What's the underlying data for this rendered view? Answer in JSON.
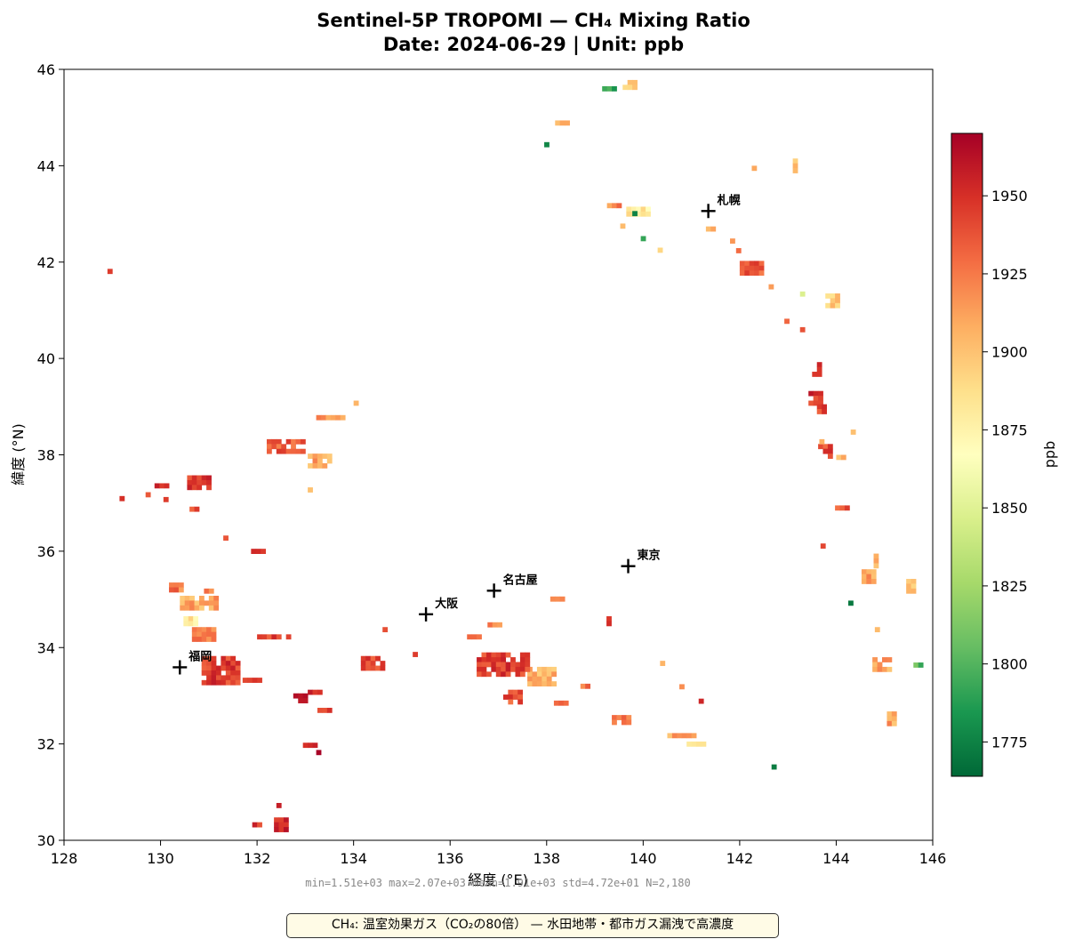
{
  "title": {
    "line1": "Sentinel-5P TROPOMI — CH₄ Mixing Ratio",
    "line2": "Date: 2024-06-29  |  Unit: ppb"
  },
  "chart_data": {
    "type": "heatmap",
    "xlabel": "経度 (°E)",
    "ylabel": "緯度 (°N)",
    "xlim": [
      128,
      146
    ],
    "ylim": [
      30,
      46
    ],
    "xticks": [
      128,
      130,
      132,
      134,
      136,
      138,
      140,
      142,
      144,
      146
    ],
    "yticks": [
      30,
      32,
      34,
      36,
      38,
      40,
      42,
      44,
      46
    ],
    "colorbar": {
      "label": "ppb",
      "vmin": 1764,
      "vmax": 1970,
      "ticks": [
        1775,
        1800,
        1825,
        1850,
        1875,
        1900,
        1925,
        1950
      ],
      "colormap": [
        "#006837",
        "#1a9850",
        "#66bd63",
        "#a6d96a",
        "#d9ef8b",
        "#ffffbf",
        "#fee08b",
        "#fdae61",
        "#f46d43",
        "#d73027",
        "#a50026"
      ]
    },
    "cities": [
      {
        "name": "札幌",
        "lon": 141.35,
        "lat": 43.06
      },
      {
        "name": "東京",
        "lon": 139.69,
        "lat": 35.69
      },
      {
        "name": "名古屋",
        "lon": 136.91,
        "lat": 35.18
      },
      {
        "name": "大阪",
        "lon": 135.5,
        "lat": 34.69
      },
      {
        "name": "福岡",
        "lon": 130.4,
        "lat": 33.59
      }
    ],
    "clusters": [
      {
        "lon": 139.75,
        "lat": 45.68,
        "w": 0.35,
        "h": 0.2,
        "v": 1895
      },
      {
        "lon": 139.3,
        "lat": 45.6,
        "w": 0.3,
        "h": 0.1,
        "v": 1790
      },
      {
        "lon": 138.3,
        "lat": 44.9,
        "w": 0.25,
        "h": 0.08,
        "v": 1905
      },
      {
        "lon": 138.0,
        "lat": 44.45,
        "w": 0.1,
        "h": 0.08,
        "v": 1790
      },
      {
        "lon": 142.3,
        "lat": 43.95,
        "w": 0.1,
        "h": 0.1,
        "v": 1905
      },
      {
        "lon": 143.15,
        "lat": 44.0,
        "w": 0.1,
        "h": 0.3,
        "v": 1895
      },
      {
        "lon": 139.4,
        "lat": 43.15,
        "w": 0.3,
        "h": 0.15,
        "v": 1920
      },
      {
        "lon": 139.9,
        "lat": 43.05,
        "w": 0.5,
        "h": 0.2,
        "v": 1880
      },
      {
        "lon": 139.85,
        "lat": 43.0,
        "w": 0.15,
        "h": 0.12,
        "v": 1775
      },
      {
        "lon": 139.6,
        "lat": 42.75,
        "w": 0.15,
        "h": 0.1,
        "v": 1905
      },
      {
        "lon": 140.0,
        "lat": 42.5,
        "w": 0.1,
        "h": 0.08,
        "v": 1800
      },
      {
        "lon": 140.35,
        "lat": 42.25,
        "w": 0.1,
        "h": 0.1,
        "v": 1880
      },
      {
        "lon": 141.4,
        "lat": 42.7,
        "w": 0.2,
        "h": 0.08,
        "v": 1915
      },
      {
        "lon": 141.85,
        "lat": 42.45,
        "w": 0.1,
        "h": 0.08,
        "v": 1920
      },
      {
        "lon": 142.0,
        "lat": 42.25,
        "w": 0.15,
        "h": 0.08,
        "v": 1925
      },
      {
        "lon": 142.25,
        "lat": 41.9,
        "w": 0.5,
        "h": 0.25,
        "v": 1935
      },
      {
        "lon": 142.65,
        "lat": 41.5,
        "w": 0.1,
        "h": 0.08,
        "v": 1905
      },
      {
        "lon": 143.3,
        "lat": 41.35,
        "w": 0.1,
        "h": 0.08,
        "v": 1860
      },
      {
        "lon": 143.95,
        "lat": 41.2,
        "w": 0.35,
        "h": 0.3,
        "v": 1895
      },
      {
        "lon": 143.0,
        "lat": 40.75,
        "w": 0.15,
        "h": 0.15,
        "v": 1945
      },
      {
        "lon": 143.3,
        "lat": 40.6,
        "w": 0.1,
        "h": 0.1,
        "v": 1945
      },
      {
        "lon": 143.6,
        "lat": 39.75,
        "w": 0.2,
        "h": 0.35,
        "v": 1955
      },
      {
        "lon": 143.55,
        "lat": 39.2,
        "w": 0.25,
        "h": 0.25,
        "v": 1950
      },
      {
        "lon": 143.7,
        "lat": 38.95,
        "w": 0.2,
        "h": 0.2,
        "v": 1945
      },
      {
        "lon": 143.75,
        "lat": 38.05,
        "w": 0.25,
        "h": 0.35,
        "v": 1940
      },
      {
        "lon": 144.1,
        "lat": 37.95,
        "w": 0.2,
        "h": 0.1,
        "v": 1905
      },
      {
        "lon": 144.35,
        "lat": 38.45,
        "w": 0.1,
        "h": 0.15,
        "v": 1890
      },
      {
        "lon": 143.7,
        "lat": 38.3,
        "w": 0.1,
        "h": 0.05,
        "v": 1910
      },
      {
        "lon": 144.1,
        "lat": 36.9,
        "w": 0.25,
        "h": 0.1,
        "v": 1935
      },
      {
        "lon": 143.75,
        "lat": 36.1,
        "w": 0.15,
        "h": 0.12,
        "v": 1940
      },
      {
        "lon": 144.65,
        "lat": 35.5,
        "w": 0.25,
        "h": 0.25,
        "v": 1910
      },
      {
        "lon": 144.85,
        "lat": 35.8,
        "w": 0.15,
        "h": 0.3,
        "v": 1900
      },
      {
        "lon": 144.3,
        "lat": 34.95,
        "w": 0.1,
        "h": 0.05,
        "v": 1780
      },
      {
        "lon": 145.55,
        "lat": 35.25,
        "w": 0.2,
        "h": 0.35,
        "v": 1905
      },
      {
        "lon": 145.0,
        "lat": 33.65,
        "w": 0.5,
        "h": 0.3,
        "v": 1910
      },
      {
        "lon": 144.85,
        "lat": 34.4,
        "w": 0.1,
        "h": 0.05,
        "v": 1900
      },
      {
        "lon": 145.7,
        "lat": 33.65,
        "w": 0.2,
        "h": 0.08,
        "v": 1800
      },
      {
        "lon": 145.15,
        "lat": 32.5,
        "w": 0.2,
        "h": 0.35,
        "v": 1910
      },
      {
        "lon": 142.7,
        "lat": 31.55,
        "w": 0.08,
        "h": 0.05,
        "v": 1780
      },
      {
        "lon": 141.2,
        "lat": 32.9,
        "w": 0.1,
        "h": 0.08,
        "v": 1945
      },
      {
        "lon": 140.8,
        "lat": 33.2,
        "w": 0.1,
        "h": 0.08,
        "v": 1905
      },
      {
        "lon": 140.4,
        "lat": 33.65,
        "w": 0.1,
        "h": 0.15,
        "v": 1915
      },
      {
        "lon": 139.6,
        "lat": 32.5,
        "w": 0.5,
        "h": 0.2,
        "v": 1930
      },
      {
        "lon": 140.8,
        "lat": 32.15,
        "w": 0.6,
        "h": 0.15,
        "v": 1910
      },
      {
        "lon": 141.1,
        "lat": 32.0,
        "w": 0.4,
        "h": 0.1,
        "v": 1885
      },
      {
        "lon": 139.3,
        "lat": 34.55,
        "w": 0.12,
        "h": 0.2,
        "v": 1945
      },
      {
        "lon": 138.2,
        "lat": 35.0,
        "w": 0.25,
        "h": 0.12,
        "v": 1915
      },
      {
        "lon": 137.9,
        "lat": 33.4,
        "w": 0.6,
        "h": 0.4,
        "v": 1905
      },
      {
        "lon": 137.1,
        "lat": 33.65,
        "w": 1.1,
        "h": 0.5,
        "v": 1945
      },
      {
        "lon": 136.5,
        "lat": 34.2,
        "w": 0.3,
        "h": 0.15,
        "v": 1935
      },
      {
        "lon": 136.9,
        "lat": 34.45,
        "w": 0.25,
        "h": 0.15,
        "v": 1925
      },
      {
        "lon": 137.3,
        "lat": 33.0,
        "w": 0.4,
        "h": 0.25,
        "v": 1940
      },
      {
        "lon": 138.3,
        "lat": 32.85,
        "w": 0.3,
        "h": 0.1,
        "v": 1935
      },
      {
        "lon": 138.8,
        "lat": 33.2,
        "w": 0.2,
        "h": 0.1,
        "v": 1925
      },
      {
        "lon": 134.4,
        "lat": 33.7,
        "w": 0.5,
        "h": 0.25,
        "v": 1940
      },
      {
        "lon": 135.3,
        "lat": 33.85,
        "w": 0.15,
        "h": 0.12,
        "v": 1935
      },
      {
        "lon": 134.65,
        "lat": 34.4,
        "w": 0.1,
        "h": 0.05,
        "v": 1930
      },
      {
        "lon": 130.9,
        "lat": 34.25,
        "w": 0.5,
        "h": 0.35,
        "v": 1925
      },
      {
        "lon": 131.25,
        "lat": 33.55,
        "w": 0.8,
        "h": 0.55,
        "v": 1945
      },
      {
        "lon": 131.9,
        "lat": 33.3,
        "w": 0.4,
        "h": 0.15,
        "v": 1945
      },
      {
        "lon": 130.35,
        "lat": 35.25,
        "w": 0.35,
        "h": 0.2,
        "v": 1925
      },
      {
        "lon": 130.8,
        "lat": 34.95,
        "w": 0.8,
        "h": 0.25,
        "v": 1910
      },
      {
        "lon": 130.6,
        "lat": 34.55,
        "w": 0.25,
        "h": 0.2,
        "v": 1880
      },
      {
        "lon": 131.0,
        "lat": 35.15,
        "w": 0.2,
        "h": 0.15,
        "v": 1920
      },
      {
        "lon": 132.35,
        "lat": 34.2,
        "w": 0.7,
        "h": 0.15,
        "v": 1945
      },
      {
        "lon": 132.9,
        "lat": 32.95,
        "w": 0.3,
        "h": 0.2,
        "v": 1955
      },
      {
        "lon": 133.2,
        "lat": 33.05,
        "w": 0.3,
        "h": 0.15,
        "v": 1960
      },
      {
        "lon": 133.4,
        "lat": 32.7,
        "w": 0.3,
        "h": 0.1,
        "v": 1950
      },
      {
        "lon": 133.1,
        "lat": 31.95,
        "w": 0.3,
        "h": 0.15,
        "v": 1960
      },
      {
        "lon": 133.3,
        "lat": 31.8,
        "w": 0.15,
        "h": 0.15,
        "v": 1965
      },
      {
        "lon": 132.5,
        "lat": 30.35,
        "w": 0.3,
        "h": 0.25,
        "v": 1950
      },
      {
        "lon": 132.45,
        "lat": 30.75,
        "w": 0.1,
        "h": 0.05,
        "v": 1950
      },
      {
        "lon": 132.0,
        "lat": 30.35,
        "w": 0.2,
        "h": 0.05,
        "v": 1945
      },
      {
        "lon": 132.05,
        "lat": 36.0,
        "w": 0.35,
        "h": 0.1,
        "v": 1940
      },
      {
        "lon": 132.6,
        "lat": 38.15,
        "w": 0.8,
        "h": 0.35,
        "v": 1935
      },
      {
        "lon": 133.3,
        "lat": 37.9,
        "w": 0.5,
        "h": 0.25,
        "v": 1910
      },
      {
        "lon": 133.5,
        "lat": 38.75,
        "w": 0.55,
        "h": 0.15,
        "v": 1920
      },
      {
        "lon": 134.05,
        "lat": 39.1,
        "w": 0.1,
        "h": 0.05,
        "v": 1915
      },
      {
        "lon": 133.1,
        "lat": 37.3,
        "w": 0.1,
        "h": 0.05,
        "v": 1900
      },
      {
        "lon": 130.8,
        "lat": 37.45,
        "w": 0.5,
        "h": 0.25,
        "v": 1945
      },
      {
        "lon": 130.05,
        "lat": 37.35,
        "w": 0.35,
        "h": 0.12,
        "v": 1950
      },
      {
        "lon": 130.7,
        "lat": 36.85,
        "w": 0.2,
        "h": 0.15,
        "v": 1945
      },
      {
        "lon": 129.75,
        "lat": 37.2,
        "w": 0.12,
        "h": 0.05,
        "v": 1950
      },
      {
        "lon": 130.1,
        "lat": 37.1,
        "w": 0.08,
        "h": 0.05,
        "v": 1945
      },
      {
        "lon": 129.2,
        "lat": 37.12,
        "w": 0.1,
        "h": 0.05,
        "v": 1950
      },
      {
        "lon": 131.35,
        "lat": 36.3,
        "w": 0.1,
        "h": 0.05,
        "v": 1940
      },
      {
        "lon": 128.95,
        "lat": 41.8,
        "w": 0.1,
        "h": 0.12,
        "v": 1955
      }
    ]
  },
  "stats_text": "min=1.51e+03  max=2.07e+03  mean=1.91e+03  std=4.72e+01  N=2,180",
  "note": {
    "text": "CH₄: 温室効果ガス（CO₂の80倍） — 水田地帯・都市ガス漏洩で高濃度"
  }
}
